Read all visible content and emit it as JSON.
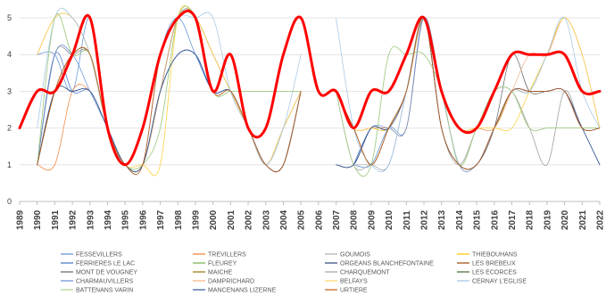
{
  "chart_data": {
    "type": "line",
    "title": "",
    "xlabel": "",
    "ylabel": "",
    "ylim": [
      0,
      5
    ],
    "yticks": [
      0,
      1,
      2,
      3,
      4,
      5
    ],
    "x": [
      "1989",
      "1990",
      "1991",
      "1992",
      "1993",
      "1994",
      "1995",
      "1996",
      "1997",
      "1998",
      "1999",
      "2000",
      "2001",
      "2002",
      "2003",
      "2004",
      "2005",
      "2006",
      "2007",
      "2008",
      "2009",
      "2010",
      "2011",
      "2012",
      "2013",
      "2014",
      "2015",
      "2016",
      "2017",
      "2018",
      "2019",
      "2020",
      "2021",
      "2022"
    ],
    "grid": "horizontal",
    "legend_position": "bottom",
    "series": [
      {
        "name": "FESSEVILLERS",
        "color": "#5b8fd4",
        "width": 0.7,
        "values": [
          null,
          4,
          4,
          3,
          5,
          2,
          1,
          1,
          4,
          5,
          4,
          3,
          3,
          2,
          1,
          1,
          3,
          null,
          null,
          1,
          1,
          2,
          2,
          5,
          2,
          1,
          1,
          2,
          3,
          3,
          3,
          3,
          2,
          2
        ]
      },
      {
        "name": "TREVILLERS",
        "color": "#ed7d31",
        "width": 0.7,
        "values": [
          null,
          1,
          1,
          3,
          3,
          2,
          1,
          1,
          3,
          5,
          5,
          3,
          3,
          2,
          1,
          1,
          3,
          null,
          3,
          2,
          2,
          2,
          2,
          5,
          3,
          1,
          1,
          2,
          3,
          3,
          3,
          3,
          2,
          2
        ]
      },
      {
        "name": "GOUMOIS",
        "color": "#b0b0b0",
        "width": 0.7,
        "values": [
          null,
          1,
          4,
          4,
          4,
          2,
          1,
          1,
          3,
          4,
          4,
          3,
          3,
          2,
          1,
          2,
          3,
          null,
          null,
          1,
          1,
          1,
          3,
          5,
          2,
          1,
          2,
          3,
          3,
          2,
          1,
          3,
          2,
          2
        ]
      },
      {
        "name": "THIEBOUHANS",
        "color": "#ffc000",
        "width": 0.7,
        "values": [
          null,
          4,
          5,
          5,
          4,
          2,
          1,
          1,
          1,
          5,
          5,
          4,
          3,
          2,
          1,
          2,
          3,
          null,
          3,
          2,
          2,
          2,
          3,
          5,
          3,
          2,
          2,
          2,
          2,
          3,
          4,
          5,
          4,
          2
        ]
      },
      {
        "name": "FERRIERES LE LAC",
        "color": "#4472c4",
        "width": 0.7,
        "values": [
          null,
          1,
          4,
          3,
          3,
          2,
          1,
          1,
          3,
          4,
          4,
          3,
          3,
          2,
          1,
          1,
          3,
          null,
          null,
          1,
          2,
          2,
          3,
          5,
          3,
          1,
          1,
          2,
          3,
          3,
          3,
          3,
          2,
          2
        ]
      },
      {
        "name": "FLEUREY",
        "color": "#70ad47",
        "width": 0.7,
        "values": [
          null,
          1,
          5,
          4,
          4,
          2,
          1,
          1,
          2,
          5,
          5,
          3,
          3,
          3,
          3,
          3,
          3,
          null,
          3,
          1,
          1,
          4,
          4,
          4,
          3,
          1,
          2,
          3,
          3,
          2,
          2,
          2,
          2,
          2
        ]
      },
      {
        "name": "ORGEANS BLANCHEFONTAINE",
        "color": "#264478",
        "width": 0.7,
        "values": [
          null,
          1,
          3,
          3,
          3,
          2,
          1,
          1,
          3,
          4,
          4,
          3,
          3,
          2,
          1,
          1,
          3,
          null,
          1,
          1,
          2,
          2,
          3,
          5,
          2,
          1,
          1,
          2,
          3,
          3,
          3,
          3,
          2,
          1
        ]
      },
      {
        "name": "LES BREBEUX",
        "color": "#9e480e",
        "width": 0.7,
        "values": [
          null,
          1,
          3,
          4,
          4,
          2,
          1,
          1,
          4,
          5,
          5,
          3,
          3,
          2,
          1,
          1,
          3,
          null,
          3,
          2,
          1,
          2,
          3,
          5,
          2,
          1,
          1,
          2,
          3,
          3,
          3,
          3,
          2,
          2
        ]
      },
      {
        "name": "MONT DE VOUGNEY",
        "color": "#636363",
        "width": 0.7,
        "values": [
          null,
          1,
          4,
          4,
          4,
          2,
          1,
          1,
          3,
          5,
          5,
          3,
          3,
          2,
          1,
          2,
          3,
          null,
          1,
          1,
          2,
          2,
          3,
          5,
          2,
          1,
          1,
          2,
          4,
          3,
          3,
          3,
          2,
          2
        ]
      },
      {
        "name": "MAICHE",
        "color": "#997300",
        "width": 0.7,
        "values": [
          null,
          4,
          5,
          5,
          4,
          2,
          1,
          1,
          3,
          5,
          5,
          4,
          3,
          2,
          1,
          2,
          3,
          null,
          3,
          2,
          2,
          2,
          3,
          5,
          3,
          2,
          2,
          2,
          3,
          3,
          4,
          5,
          4,
          2
        ]
      },
      {
        "name": "CHARQUEMONT",
        "color": "#a5a5a5",
        "width": 0.7,
        "values": [
          null,
          1,
          4,
          4,
          4,
          2,
          1,
          1,
          3,
          5,
          5,
          3,
          3,
          2,
          1,
          1,
          3,
          null,
          3,
          1,
          1,
          1,
          3,
          5,
          2,
          1,
          2,
          3,
          3,
          2,
          1,
          3,
          2,
          2
        ]
      },
      {
        "name": "LES ECORCES",
        "color": "#43682b",
        "width": 0.7,
        "values": [
          null,
          1,
          3,
          4,
          4,
          2,
          1,
          1,
          3,
          5,
          5,
          4,
          3,
          2,
          1,
          1,
          3,
          null,
          3,
          2,
          1,
          2,
          3,
          5,
          2,
          1,
          1,
          2,
          3,
          3,
          3,
          3,
          2,
          2
        ]
      },
      {
        "name": "CHARMAUVILLERS",
        "color": "#698ed0",
        "width": 0.7,
        "values": [
          null,
          1,
          4,
          4,
          3,
          2,
          1,
          1,
          3,
          4,
          4,
          3,
          3,
          2,
          1,
          1,
          3,
          null,
          null,
          1,
          2,
          2,
          2,
          5,
          3,
          1,
          1,
          2,
          3,
          3,
          3,
          3,
          2,
          2
        ]
      },
      {
        "name": "DAMPRICHARD",
        "color": "#f4b183",
        "width": 0.7,
        "values": [
          null,
          4,
          5,
          5,
          4,
          2,
          1,
          1,
          3,
          5,
          5,
          4,
          3,
          2,
          1,
          2,
          3,
          null,
          3,
          2,
          2,
          2,
          3,
          5,
          3,
          2,
          2,
          2,
          3,
          4,
          4,
          5,
          4,
          2
        ]
      },
      {
        "name": "BELFAYS",
        "color": "#ffd966",
        "width": 0.7,
        "values": [
          null,
          4,
          5,
          5,
          4,
          2,
          1,
          1,
          1,
          5,
          5,
          4,
          3,
          2,
          1,
          2,
          3,
          null,
          3,
          2,
          2,
          2,
          3,
          5,
          3,
          2,
          2,
          2,
          2,
          3,
          4,
          5,
          4,
          2
        ]
      },
      {
        "name": "CERNAY L'EGLISE",
        "color": "#9dc3e6",
        "width": 0.7,
        "values": [
          null,
          2,
          5,
          5,
          4,
          2,
          1,
          1,
          4,
          5,
          5,
          5,
          3,
          2,
          1,
          2,
          4,
          null,
          5,
          2,
          1,
          1,
          3,
          5,
          3,
          1,
          1,
          2,
          3,
          3,
          4,
          5,
          3,
          2
        ]
      },
      {
        "name": "BATTENANS VARIN",
        "color": "#a9d18e",
        "width": 0.7,
        "values": [
          null,
          1,
          5,
          4,
          4,
          2,
          1,
          1,
          2,
          5,
          5,
          3,
          3,
          3,
          3,
          3,
          3,
          null,
          3,
          1,
          1,
          4,
          4,
          4,
          3,
          1,
          2,
          3,
          3,
          2,
          2,
          2,
          2,
          2
        ]
      },
      {
        "name": "MANCENANS LIZERNE",
        "color": "#2f5597",
        "width": 0.7,
        "values": [
          null,
          1,
          3,
          3,
          3,
          2,
          1,
          1,
          3,
          4,
          4,
          3,
          3,
          2,
          1,
          1,
          3,
          null,
          1,
          1,
          2,
          2,
          3,
          5,
          2,
          1,
          1,
          2,
          3,
          3,
          3,
          3,
          2,
          1
        ]
      },
      {
        "name": "URTIERE",
        "color": "#c55a11",
        "width": 0.7,
        "values": [
          null,
          1,
          3,
          4,
          4,
          2,
          1,
          1,
          4,
          5,
          5,
          3,
          3,
          2,
          1,
          1,
          3,
          null,
          3,
          2,
          1,
          2,
          3,
          5,
          2,
          1,
          1,
          2,
          3,
          3,
          3,
          3,
          2,
          2
        ]
      },
      {
        "name": "",
        "color": "#ff0000",
        "width": 3,
        "values": [
          2,
          3,
          3,
          4,
          5,
          2,
          1,
          2,
          4,
          5,
          5,
          3,
          4,
          2,
          2,
          4,
          5,
          3,
          3,
          2,
          3,
          3,
          4,
          5,
          3,
          2,
          2,
          3,
          4,
          4,
          4,
          4,
          3,
          3
        ]
      }
    ]
  }
}
